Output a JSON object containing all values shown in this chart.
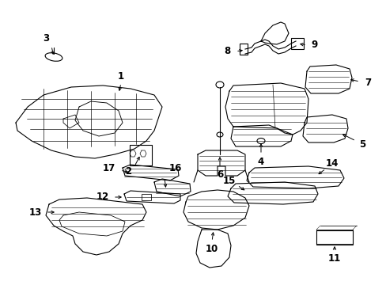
{
  "bg_color": "#ffffff",
  "line_color": "#000000",
  "lw": 0.8,
  "fig_w": 4.89,
  "fig_h": 3.6,
  "dpi": 100,
  "xlim": [
    0,
    489
  ],
  "ylim": [
    0,
    360
  ]
}
